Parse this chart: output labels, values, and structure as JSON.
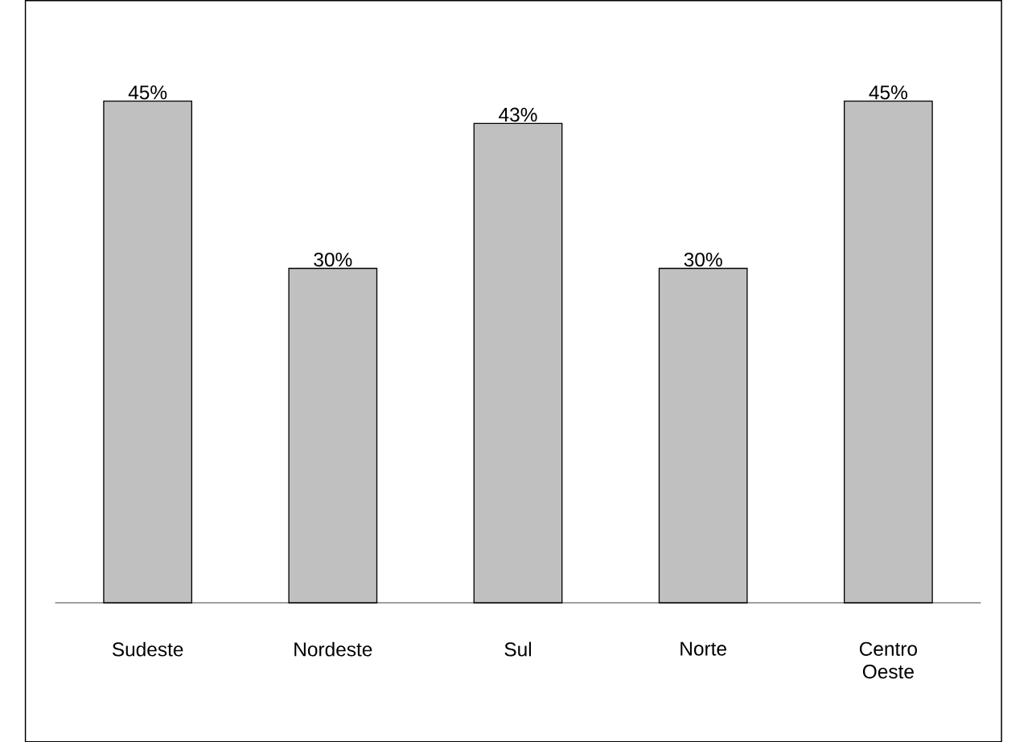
{
  "chart_data": {
    "type": "bar",
    "categories": [
      "Sudeste",
      "Nordeste",
      "Sul",
      "Norte",
      "Centro Oeste"
    ],
    "values": [
      45,
      30,
      43,
      30,
      45
    ],
    "value_labels": [
      "45%",
      "30%",
      "43%",
      "30%",
      "45%"
    ],
    "color": "#c0c0c0"
  }
}
